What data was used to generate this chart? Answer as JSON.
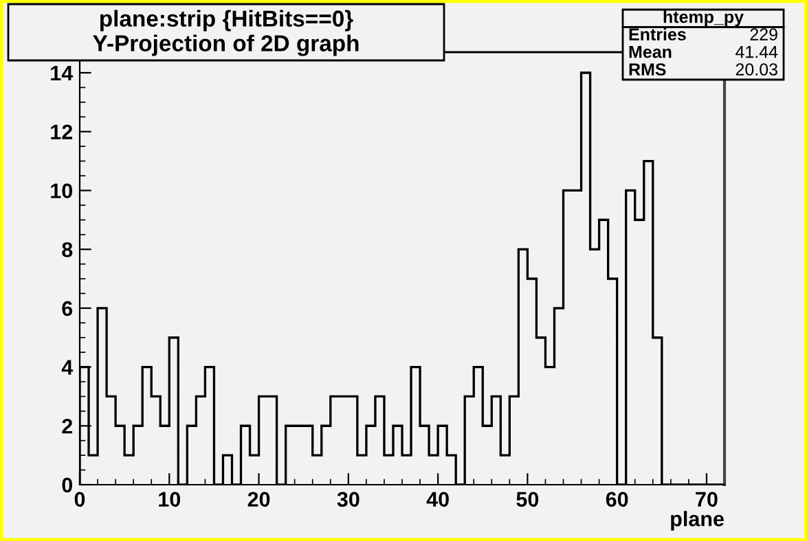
{
  "chart_data": {
    "type": "histogram",
    "title": "plane:strip {HitBits==0}",
    "subtitle": "Y-Projection of 2D graph",
    "xlabel": "plane",
    "bins": [
      0,
      1,
      2,
      3,
      4,
      5,
      6,
      7,
      8,
      9,
      10,
      11,
      12,
      13,
      14,
      15,
      16,
      17,
      18,
      19,
      20,
      21,
      22,
      23,
      24,
      25,
      26,
      27,
      28,
      29,
      30,
      31,
      32,
      33,
      34,
      35,
      36,
      37,
      38,
      39,
      40,
      41,
      42,
      43,
      44,
      45,
      46,
      47,
      48,
      49,
      50,
      51,
      52,
      53,
      54,
      55,
      56,
      57,
      58,
      59,
      60,
      61,
      62,
      63,
      64,
      65,
      66,
      67,
      68,
      69,
      70,
      71,
      72
    ],
    "values": [
      4,
      1,
      6,
      3,
      2,
      1,
      2,
      4,
      3,
      2,
      5,
      0,
      2,
      3,
      4,
      0,
      1,
      0,
      2,
      1,
      3,
      3,
      0,
      2,
      2,
      2,
      1,
      2,
      3,
      3,
      3,
      1,
      2,
      3,
      1,
      2,
      1,
      4,
      2,
      1,
      2,
      1,
      0,
      3,
      4,
      2,
      3,
      1,
      3,
      8,
      7,
      5,
      4,
      6,
      10,
      10,
      14,
      8,
      9,
      7,
      0,
      10,
      9,
      11,
      5,
      0,
      0,
      0,
      0,
      0,
      0,
      0
    ],
    "color": "#000000",
    "xlim": [
      0,
      72
    ],
    "ylim": [
      0,
      14.7
    ],
    "xticks": [
      0,
      10,
      20,
      30,
      40,
      50,
      60,
      70
    ],
    "yticks": [
      0,
      2,
      4,
      6,
      8,
      10,
      12,
      14
    ],
    "grid": false,
    "annotations": [
      "htemp_py",
      "Entries",
      "229",
      "Mean",
      "41.44",
      "RMS",
      "20.03"
    ]
  }
}
